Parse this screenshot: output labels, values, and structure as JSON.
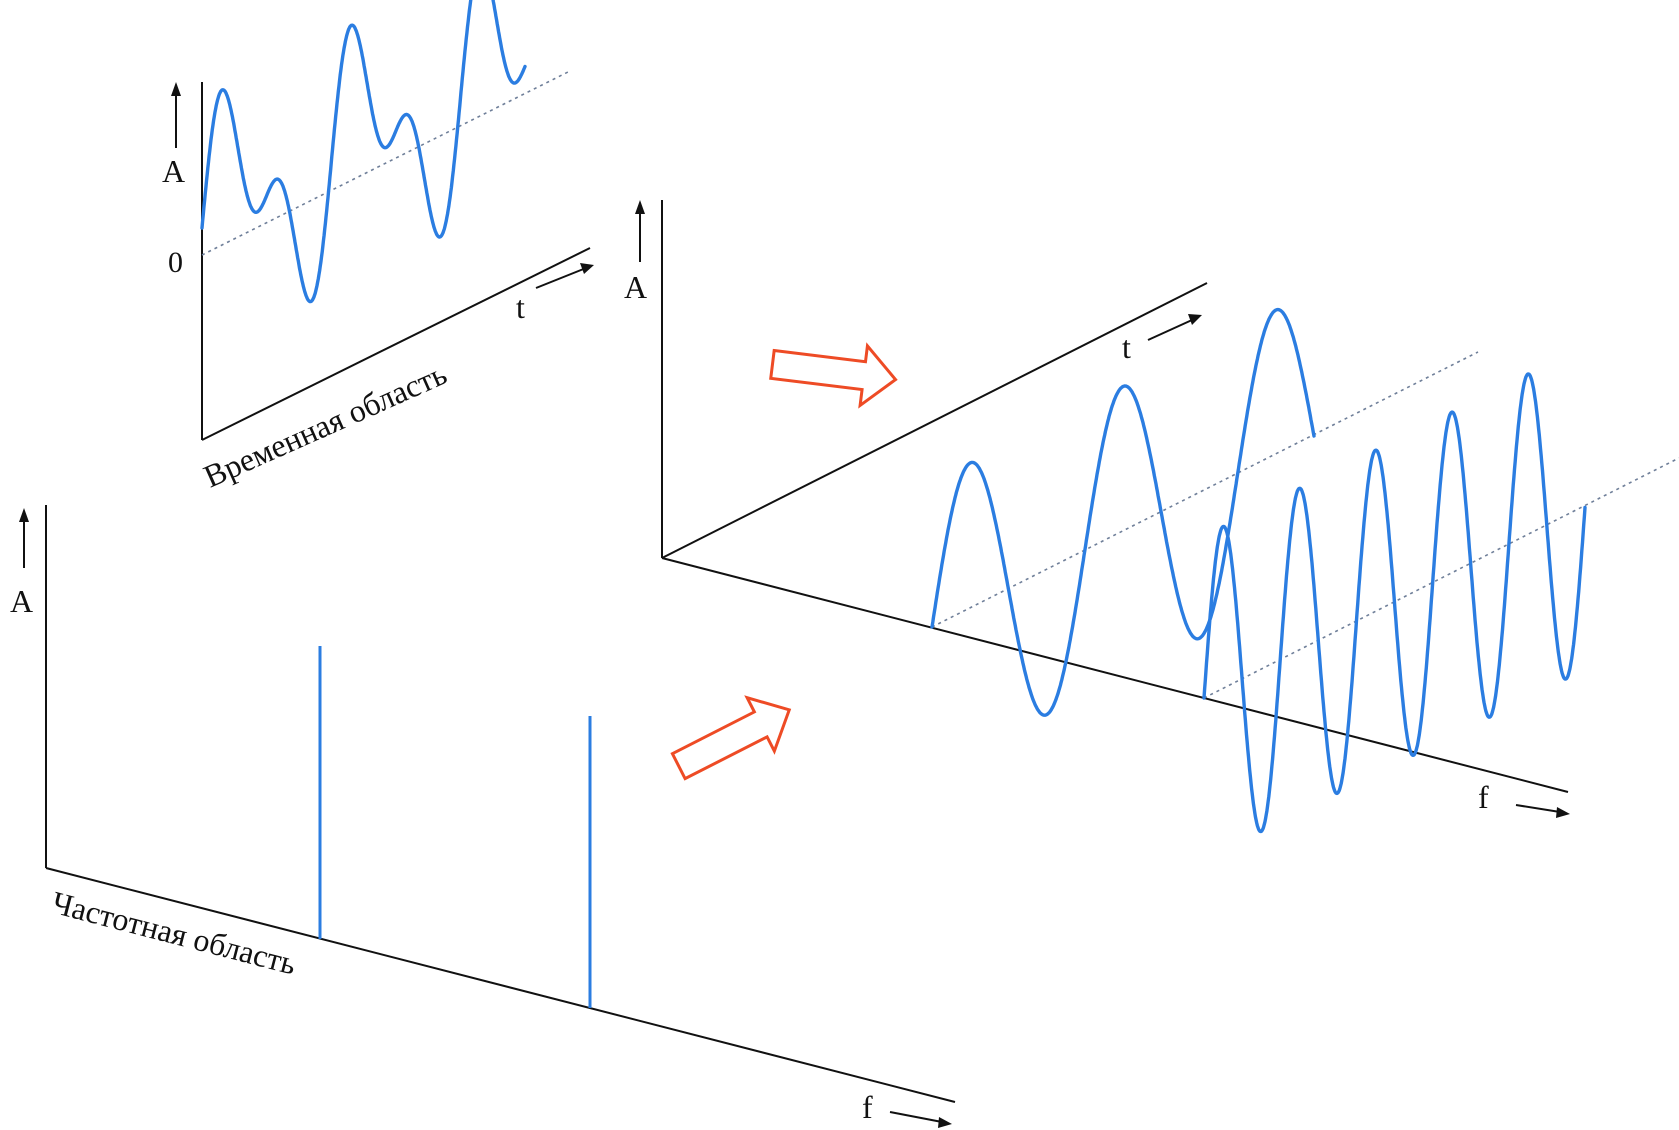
{
  "time_domain": {
    "amplitude_label": "A",
    "zero_label": "0",
    "time_label": "t",
    "caption": "Временная область"
  },
  "combined_3d": {
    "amplitude_label": "A",
    "time_label": "t",
    "frequency_label": "f"
  },
  "frequency_domain": {
    "amplitude_label": "A",
    "frequency_label": "f",
    "caption": "Частотная область"
  },
  "colors": {
    "signal": "#2b7de1",
    "axes": "#111111",
    "arrows": "#ee4b25"
  }
}
